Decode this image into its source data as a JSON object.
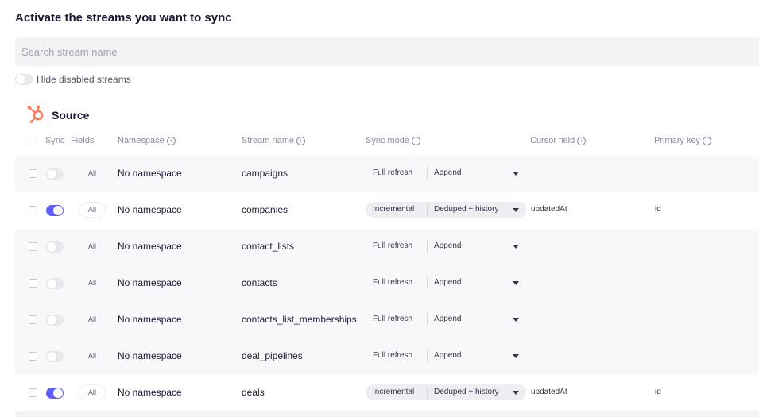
{
  "heading": "Activate the streams you want to sync",
  "search": {
    "placeholder": "Search stream name",
    "value": ""
  },
  "hide_disabled": {
    "label": "Hide disabled streams",
    "enabled": false
  },
  "source": {
    "name": "Source",
    "icon": "hubspot-icon",
    "brand_color": "#ff7a59"
  },
  "columns": {
    "sync": "Sync",
    "fields": "Fields",
    "namespace": "Namespace",
    "stream_name": "Stream name",
    "sync_mode": "Sync mode",
    "cursor_field": "Cursor field",
    "primary_key": "Primary key"
  },
  "colors": {
    "accent": "#615eff",
    "row_alt": "#f8f8fa"
  },
  "streams": [
    {
      "sync": false,
      "fields": "All",
      "namespace": "No namespace",
      "name": "campaigns",
      "source_mode": "Full refresh",
      "dest_mode": "Append",
      "cursor": "",
      "primary_key": ""
    },
    {
      "sync": true,
      "fields": "All",
      "namespace": "No namespace",
      "name": "companies",
      "source_mode": "Incremental",
      "dest_mode": "Deduped + history",
      "cursor": "updatedAt",
      "primary_key": "id"
    },
    {
      "sync": false,
      "fields": "All",
      "namespace": "No namespace",
      "name": "contact_lists",
      "source_mode": "Full refresh",
      "dest_mode": "Append",
      "cursor": "",
      "primary_key": ""
    },
    {
      "sync": false,
      "fields": "All",
      "namespace": "No namespace",
      "name": "contacts",
      "source_mode": "Full refresh",
      "dest_mode": "Append",
      "cursor": "",
      "primary_key": ""
    },
    {
      "sync": false,
      "fields": "All",
      "namespace": "No namespace",
      "name": "contacts_list_memberships",
      "source_mode": "Full refresh",
      "dest_mode": "Append",
      "cursor": "",
      "primary_key": ""
    },
    {
      "sync": false,
      "fields": "All",
      "namespace": "No namespace",
      "name": "deal_pipelines",
      "source_mode": "Full refresh",
      "dest_mode": "Append",
      "cursor": "",
      "primary_key": ""
    },
    {
      "sync": true,
      "fields": "All",
      "namespace": "No namespace",
      "name": "deals",
      "source_mode": "Incremental",
      "dest_mode": "Deduped + history",
      "cursor": "updatedAt",
      "primary_key": "id"
    }
  ]
}
